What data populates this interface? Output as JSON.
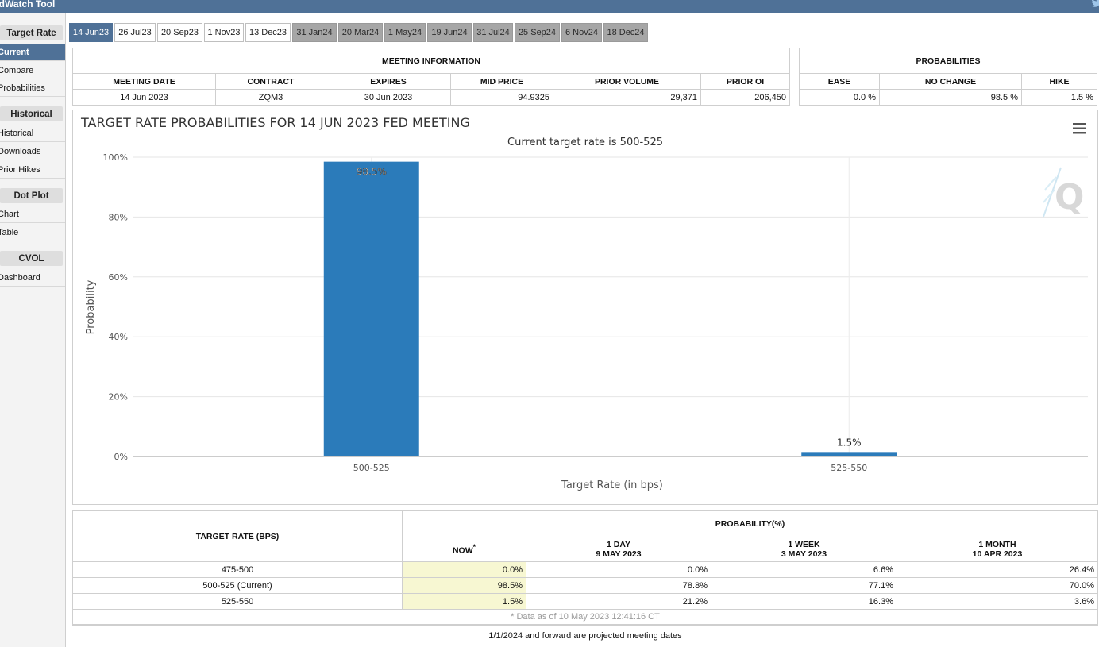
{
  "app": {
    "title": "edWatch Tool"
  },
  "sidebar": {
    "sections": [
      {
        "heading": "Target Rate",
        "items": [
          {
            "label": "Current",
            "active": true
          },
          {
            "label": "Compare"
          },
          {
            "label": "Probabilities"
          }
        ]
      },
      {
        "heading": "Historical",
        "items": [
          {
            "label": "Historical"
          },
          {
            "label": "Downloads"
          },
          {
            "label": "Prior Hikes"
          }
        ]
      },
      {
        "heading": "Dot Plot",
        "items": [
          {
            "label": "Chart"
          },
          {
            "label": "Table"
          }
        ]
      },
      {
        "heading": "CVOL",
        "items": [
          {
            "label": "Dashboard"
          }
        ]
      }
    ]
  },
  "tabs": [
    {
      "label": "14 Jun23",
      "state": "active"
    },
    {
      "label": "26 Jul23",
      "state": "normal"
    },
    {
      "label": "20 Sep23",
      "state": "normal"
    },
    {
      "label": "1 Nov23",
      "state": "normal"
    },
    {
      "label": "13 Dec23",
      "state": "normal"
    },
    {
      "label": "31 Jan24",
      "state": "grey"
    },
    {
      "label": "20 Mar24",
      "state": "grey"
    },
    {
      "label": "1 May24",
      "state": "grey"
    },
    {
      "label": "19 Jun24",
      "state": "grey"
    },
    {
      "label": "31 Jul24",
      "state": "grey"
    },
    {
      "label": "25 Sep24",
      "state": "grey"
    },
    {
      "label": "6 Nov24",
      "state": "grey"
    },
    {
      "label": "18 Dec24",
      "state": "grey"
    }
  ],
  "meeting": {
    "heading": "MEETING INFORMATION",
    "columns": [
      "MEETING DATE",
      "CONTRACT",
      "EXPIRES",
      "MID PRICE",
      "PRIOR VOLUME",
      "PRIOR OI"
    ],
    "values": [
      "14 Jun 2023",
      "ZQM3",
      "30 Jun 2023",
      "94.9325",
      "29,371",
      "206,450"
    ]
  },
  "probabilities": {
    "heading": "PROBABILITIES",
    "columns": [
      "EASE",
      "NO CHANGE",
      "HIKE"
    ],
    "values": [
      "0.0 %",
      "98.5 %",
      "1.5 %"
    ]
  },
  "chart_data": {
    "type": "bar",
    "title": "TARGET RATE PROBABILITIES FOR 14 JUN 2023 FED MEETING",
    "subtitle": "Current target rate is 500-525",
    "xlabel": "Target Rate (in bps)",
    "ylabel": "Probability",
    "categories": [
      "500-525",
      "525-550"
    ],
    "values": [
      98.5,
      1.5
    ],
    "data_labels": [
      "98.5%",
      "1.5%"
    ],
    "ylim": [
      0,
      100
    ],
    "yticks": [
      "0%",
      "20%",
      "40%",
      "60%",
      "80%",
      "100%"
    ],
    "grid": true,
    "bar_color": "#2b7bba",
    "menu_icon": "hamburger-menu-icon",
    "watermark_text": "Q"
  },
  "history": {
    "row_header": "TARGET RATE (BPS)",
    "group_header": "PROBABILITY(%)",
    "columns": [
      {
        "line1": "NOW",
        "line2": ""
      },
      {
        "line1": "1 DAY",
        "line2": "9 MAY 2023"
      },
      {
        "line1": "1 WEEK",
        "line2": "3 MAY 2023"
      },
      {
        "line1": "1 MONTH",
        "line2": "10 APR 2023"
      }
    ],
    "rows": [
      {
        "rate": "475-500",
        "values": [
          "0.0%",
          "0.0%",
          "6.6%",
          "26.4%"
        ]
      },
      {
        "rate": "500-525 (Current)",
        "values": [
          "98.5%",
          "78.8%",
          "77.1%",
          "70.0%"
        ]
      },
      {
        "rate": "525-550",
        "values": [
          "1.5%",
          "21.2%",
          "16.3%",
          "3.6%"
        ]
      }
    ],
    "footnote": "* Data as of 10 May 2023 12:41:16 CT"
  },
  "bottom_note": "1/1/2024 and forward are projected meeting dates",
  "colors": {
    "brand": "#4f7197",
    "now_highlight": "#f7f7d2",
    "tab_grey": "#a6a6a6"
  }
}
